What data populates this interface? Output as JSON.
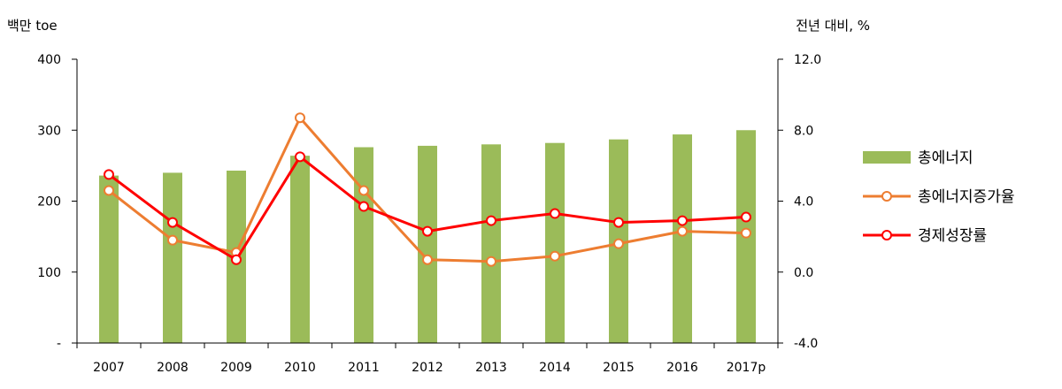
{
  "chart_data": {
    "type": "bar",
    "categories": [
      "2007",
      "2008",
      "2009",
      "2010",
      "2011",
      "2012",
      "2013",
      "2014",
      "2015",
      "2016",
      "2017p"
    ],
    "y_left_label": "백만 toe",
    "y_right_label": "전년 대비, %",
    "y_left_ticks": [
      "-",
      "100",
      "200",
      "300",
      "400"
    ],
    "y_left_range": [
      0,
      400
    ],
    "y_right_ticks": [
      "-4.0",
      "0.0",
      "4.0",
      "8.0",
      "12.0"
    ],
    "y_right_range": [
      -4,
      12
    ],
    "grid": false,
    "legend_position": "right",
    "series": [
      {
        "name": "총에너지",
        "kind": "bar",
        "axis": "left",
        "color": "#9bbb59",
        "values": [
          236,
          240,
          243,
          264,
          276,
          278,
          280,
          282,
          287,
          294,
          300
        ]
      },
      {
        "name": "총에너지증가율",
        "kind": "line",
        "axis": "right",
        "color": "#ed7d31",
        "values": [
          4.6,
          1.8,
          1.1,
          8.7,
          4.6,
          0.7,
          0.6,
          0.9,
          1.6,
          2.3,
          2.2
        ]
      },
      {
        "name": "경제성장률",
        "kind": "line",
        "axis": "right",
        "color": "#ff0000",
        "values": [
          5.5,
          2.8,
          0.7,
          6.5,
          3.7,
          2.3,
          2.9,
          3.3,
          2.8,
          2.9,
          3.1
        ]
      }
    ]
  }
}
